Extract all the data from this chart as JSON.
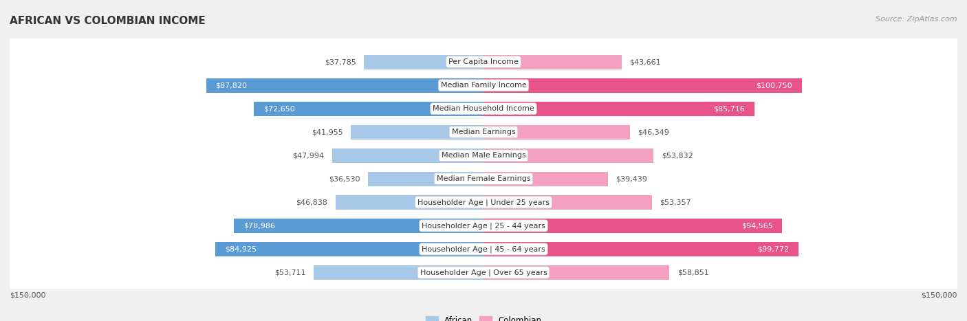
{
  "title": "AFRICAN VS COLOMBIAN INCOME",
  "source": "Source: ZipAtlas.com",
  "categories": [
    "Per Capita Income",
    "Median Family Income",
    "Median Household Income",
    "Median Earnings",
    "Median Male Earnings",
    "Median Female Earnings",
    "Householder Age | Under 25 years",
    "Householder Age | 25 - 44 years",
    "Householder Age | 45 - 64 years",
    "Householder Age | Over 65 years"
  ],
  "african_values": [
    37785,
    87820,
    72650,
    41955,
    47994,
    36530,
    46838,
    78986,
    84925,
    53711
  ],
  "colombian_values": [
    43661,
    100750,
    85716,
    46349,
    53832,
    39439,
    53357,
    94565,
    99772,
    58851
  ],
  "african_labels": [
    "$37,785",
    "$87,820",
    "$72,650",
    "$41,955",
    "$47,994",
    "$36,530",
    "$46,838",
    "$78,986",
    "$84,925",
    "$53,711"
  ],
  "colombian_labels": [
    "$43,661",
    "$100,750",
    "$85,716",
    "$46,349",
    "$53,832",
    "$39,439",
    "$53,357",
    "$94,565",
    "$99,772",
    "$58,851"
  ],
  "african_color_light": "#a8c8e8",
  "african_color_dark": "#5b9bd5",
  "colombian_color_light": "#f4a0c0",
  "colombian_color_dark": "#e8538a",
  "large_threshold": 60000,
  "max_value": 150000,
  "axis_label_left": "$150,000",
  "axis_label_right": "$150,000",
  "background_color": "#f0f0f0",
  "row_bg_color": "#ffffff",
  "row_border_color": "#d0d0d0",
  "title_fontsize": 11,
  "label_fontsize": 8,
  "category_fontsize": 8,
  "source_fontsize": 8,
  "axis_fontsize": 8
}
